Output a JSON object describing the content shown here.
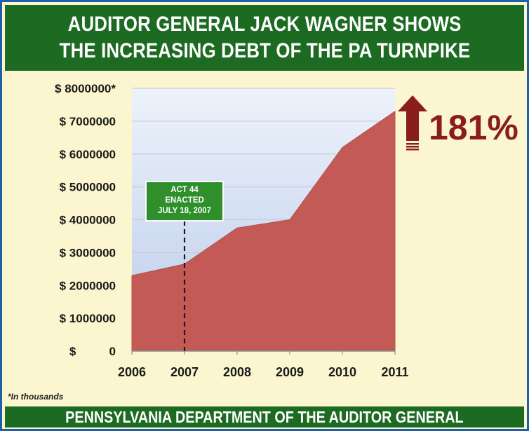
{
  "header": {
    "line1": "AUDITOR GENERAL JACK WAGNER SHOWS",
    "line2": "THE INCREASING DEBT OF THE PA TURNPIKE"
  },
  "footer": {
    "text": "PENNSYLVANIA DEPARTMENT OF THE AUDITOR GENERAL"
  },
  "footnote": "*In thousands",
  "annotation": {
    "callout_lines": [
      "ACT 44",
      "ENACTED",
      "JULY 18, 2007"
    ],
    "callout_x": 2007,
    "increase_label": "181%",
    "arrow_icon": "up-arrow-icon"
  },
  "colors": {
    "banner": "#1d6b22",
    "area_fill": "#c45a55",
    "plot_top": "#eef3fb",
    "plot_bottom": "#b9cbea",
    "increase": "#8a1e1e",
    "callout": "#2f8f2a"
  },
  "chart_data": {
    "type": "area",
    "x": [
      2006,
      2007,
      2008,
      2009,
      2010,
      2011
    ],
    "series": [
      {
        "values": [
          2300000,
          2650000,
          3750000,
          4000000,
          6200000,
          7300000
        ]
      }
    ],
    "x_tick_labels": [
      "2006",
      "2007",
      "2008",
      "2009",
      "2010",
      "2011"
    ],
    "y_ticks": [
      0,
      1000000,
      2000000,
      3000000,
      4000000,
      5000000,
      6000000,
      7000000,
      8000000
    ],
    "y_tick_labels": [
      "$          0",
      "$ 1000000",
      "$ 2000000",
      "$ 3000000",
      "$ 4000000",
      "$ 5000000",
      "$ 6000000",
      "$ 7000000",
      "$ 8000000*"
    ],
    "ylim": [
      0,
      8000000
    ],
    "grid": true,
    "title": "",
    "xlabel": "",
    "ylabel": ""
  }
}
